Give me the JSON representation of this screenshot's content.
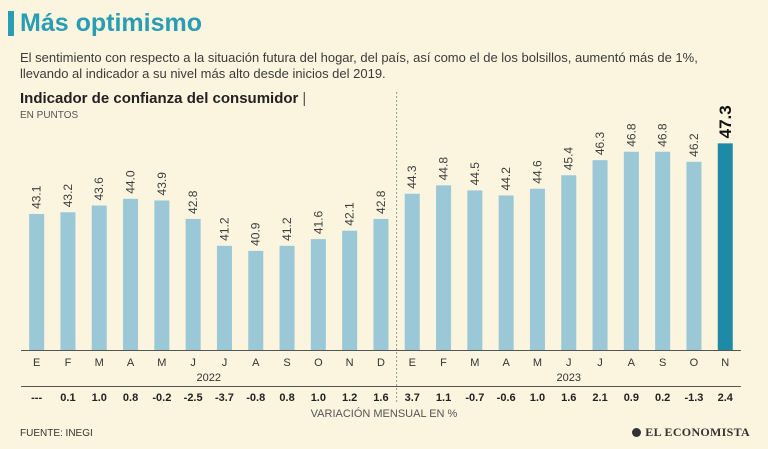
{
  "title": "Más optimismo",
  "subtitle": "El sentimiento con respecto a la situación futura del hogar, del país, así como el de los bolsillos, aumentó más de 1%, llevando al indicador a su nivel más alto desde inicios del 2019.",
  "source": "FUENTE: INEGI",
  "brand": "EL ECONOMISTA",
  "colors": {
    "bar": "#9ac8d6",
    "highlight": "#1e8aa6",
    "title": "#2a9db5",
    "background": "#fbf4df"
  },
  "chart_data": {
    "type": "bar",
    "title": "Indicador de confianza del consumidor",
    "title_sep": "|",
    "ylabel": "EN PUNTOS",
    "ylim": [
      35,
      47.5
    ],
    "categories": [
      "E",
      "F",
      "M",
      "A",
      "M",
      "J",
      "J",
      "A",
      "S",
      "O",
      "N",
      "D",
      "E",
      "F",
      "M",
      "A",
      "M",
      "J",
      "J",
      "A",
      "S",
      "O",
      "N"
    ],
    "values": [
      43.1,
      43.2,
      43.6,
      44.0,
      43.9,
      42.8,
      41.2,
      40.9,
      41.2,
      41.6,
      42.1,
      42.8,
      44.3,
      44.8,
      44.5,
      44.2,
      44.6,
      45.4,
      46.3,
      46.8,
      46.8,
      46.2,
      47.3
    ],
    "value_labels": [
      "43.1",
      "43.2",
      "43.6",
      "44.0",
      "43.9",
      "42.8",
      "41.2",
      "40.9",
      "41.2",
      "41.6",
      "42.1",
      "42.8",
      "44.3",
      "44.8",
      "44.5",
      "44.2",
      "44.6",
      "45.4",
      "46.3",
      "46.8",
      "46.8",
      "46.2",
      "47.3"
    ],
    "highlight_index": 22,
    "years": [
      {
        "label": "2022",
        "start": 0,
        "end": 11
      },
      {
        "label": "2023",
        "start": 12,
        "end": 22
      }
    ],
    "monthly_variation": [
      "---",
      "0.1",
      "1.0",
      "0.8",
      "-0.2",
      "-2.5",
      "-3.7",
      "-0.8",
      "0.8",
      "1.0",
      "1.2",
      "1.6",
      "3.7",
      "1.1",
      "-0.7",
      "-0.6",
      "1.0",
      "1.6",
      "2.1",
      "0.9",
      "0.2",
      "-1.3",
      "2.4"
    ],
    "variation_label": "VARIACIÓN MENSUAL EN %"
  }
}
